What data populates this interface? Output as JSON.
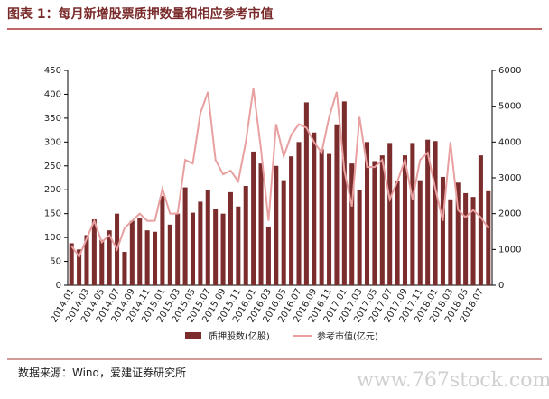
{
  "chart_data": {
    "type": "bar-line",
    "title": "图表 1：每月新增股票质押数量和相应参考市值",
    "source": "数据来源：Wind，爱建证券研究所",
    "watermark": "www.767stock.com",
    "categories": [
      "2014.01",
      null,
      "2014.03",
      null,
      "2014.05",
      null,
      "2014.07",
      null,
      "2014.09",
      null,
      "2014.11",
      null,
      "2015.01",
      null,
      "2015.03",
      null,
      "2015.05",
      null,
      "2015.07",
      null,
      "2015.09",
      null,
      "2015.11",
      null,
      "2016.01",
      null,
      "2016.03",
      null,
      "2016.05",
      null,
      "2016.07",
      null,
      "2016.09",
      null,
      "2016.11",
      null,
      "2017.01",
      null,
      "2017.03",
      null,
      "2017.05",
      null,
      "2017.07",
      null,
      "2017.09",
      null,
      "2017.11",
      null,
      "2018.01",
      null,
      "2018.03",
      null,
      "2018.05",
      null,
      "2018.07",
      null
    ],
    "series": [
      {
        "name": "质押股数(亿股)",
        "color": "#7b2c2c",
        "type": "bar",
        "values": [
          88,
          75,
          105,
          138,
          95,
          115,
          150,
          70,
          135,
          140,
          115,
          112,
          187,
          127,
          150,
          205,
          152,
          175,
          200,
          160,
          150,
          195,
          165,
          208,
          280,
          255,
          123,
          250,
          220,
          270,
          300,
          383,
          320,
          285,
          275,
          337,
          385,
          255,
          200,
          300,
          260,
          272,
          298,
          218,
          272,
          298,
          220,
          305,
          302,
          227,
          180,
          215,
          193,
          185,
          272,
          197
        ]
      },
      {
        "name": "参考市值(亿元)",
        "color": "#e8a0a0",
        "type": "line",
        "axis": "y2",
        "values": [
          1100,
          800,
          1300,
          1800,
          1200,
          1400,
          1000,
          1600,
          1800,
          2000,
          1800,
          1800,
          2700,
          2000,
          2000,
          3500,
          3400,
          4800,
          5400,
          3500,
          3100,
          3200,
          2900,
          4000,
          5500,
          3800,
          1800,
          4500,
          3600,
          4200,
          4500,
          4400,
          4000,
          3700,
          4700,
          5400,
          3200,
          2200,
          4700,
          3300,
          3300,
          3500,
          2400,
          2900,
          3500,
          2400,
          3500,
          3700,
          2700,
          1800,
          4000,
          2100,
          1900,
          2100,
          1900,
          1600
        ]
      }
    ],
    "ylim": [
      0,
      450
    ],
    "yticks": [
      0,
      50,
      100,
      150,
      200,
      250,
      300,
      350,
      400,
      450
    ],
    "y2lim": [
      0,
      6000
    ],
    "y2ticks": [
      0,
      1000,
      2000,
      3000,
      4000,
      5000,
      6000
    ]
  }
}
